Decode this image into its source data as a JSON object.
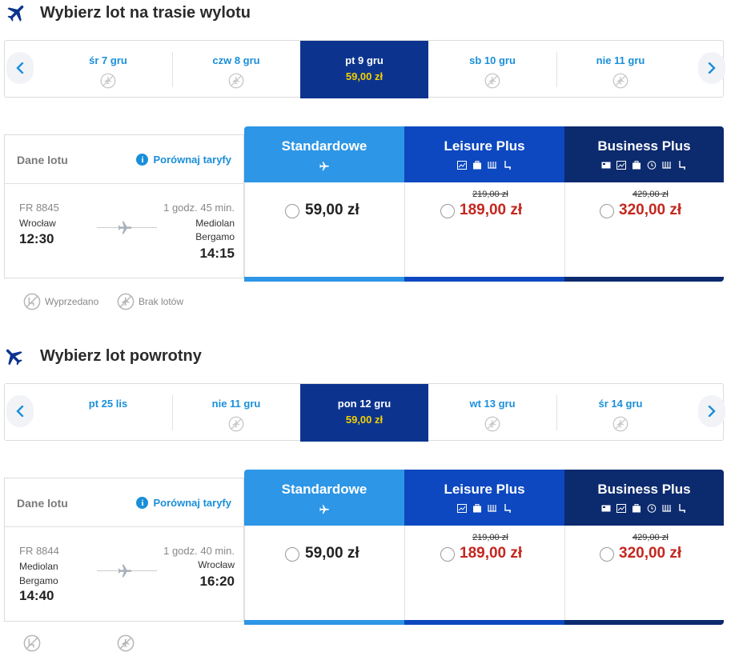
{
  "outbound": {
    "title": "Wybierz lot na trasie wylotu",
    "dates": [
      {
        "label": "śr 7 gru",
        "price": "",
        "selected": false
      },
      {
        "label": "czw 8 gru",
        "price": "",
        "selected": false
      },
      {
        "label": "pt 9 gru",
        "price": "59,00 zł",
        "selected": true
      },
      {
        "label": "sb 10 gru",
        "price": "",
        "selected": false
      },
      {
        "label": "nie 11 gru",
        "price": "",
        "selected": false
      }
    ],
    "details_label": "Dane lotu",
    "compare_label": "Porównaj taryfy",
    "flight_number": "FR 8845",
    "duration": "1 godz. 45 min.",
    "from_city": "Wrocław",
    "to_city_line1": "Mediolan",
    "to_city_line2": "Bergamo",
    "depart_time": "12:30",
    "arrive_time": "14:15",
    "fares": [
      {
        "name": "Standardowe",
        "price": "59,00 zł",
        "old_price": ""
      },
      {
        "name": "Leisure Plus",
        "price": "189,00 zł",
        "old_price": "219,00 zł"
      },
      {
        "name": "Business Plus",
        "price": "320,00 zł",
        "old_price": "429,00 zł"
      }
    ]
  },
  "legend": {
    "sold_out": "Wyprzedano",
    "no_flights": "Brak lotów"
  },
  "inbound": {
    "title": "Wybierz lot powrotny",
    "dates": [
      {
        "label": "pt 25 lis",
        "price": "",
        "selected": false
      },
      {
        "label": "nie 11 gru",
        "price": "",
        "selected": false
      },
      {
        "label": "pon 12 gru",
        "price": "59,00 zł",
        "selected": true
      },
      {
        "label": "wt 13 gru",
        "price": "",
        "selected": false
      },
      {
        "label": "śr 14 gru",
        "price": "",
        "selected": false
      }
    ],
    "details_label": "Dane lotu",
    "compare_label": "Porównaj taryfy",
    "flight_number": "FR 8844",
    "duration": "1 godz. 40 min.",
    "from_city_line1": "Mediolan",
    "from_city_line2": "Bergamo",
    "to_city": "Wrocław",
    "depart_time": "14:40",
    "arrive_time": "16:20",
    "fares": [
      {
        "name": "Standardowe",
        "price": "59,00 zł",
        "old_price": ""
      },
      {
        "name": "Leisure Plus",
        "price": "189,00 zł",
        "old_price": "219,00 zł"
      },
      {
        "name": "Business Plus",
        "price": "320,00 zł",
        "old_price": "429,00 zł"
      }
    ]
  },
  "colors": {
    "standard": "#2d96e6",
    "leisure": "#0d48c0",
    "business": "#0c2a6e",
    "selected_date": "#0c348f",
    "price_red": "#c4271f",
    "link_blue": "#1a8fd9",
    "price_yellow": "#f5d000"
  },
  "icons": {
    "section": "plane-icon",
    "no_flight": "no-flight-icon",
    "sold_out": "sold-out-icon"
  }
}
